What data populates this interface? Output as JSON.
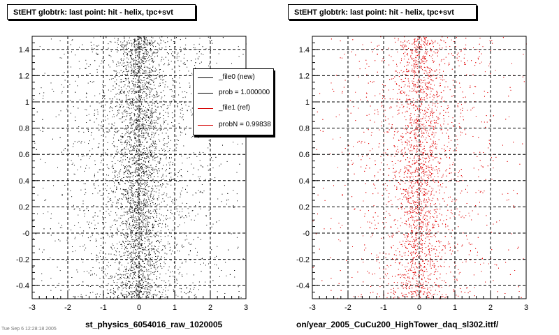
{
  "chart_data": [
    {
      "type": "scatter",
      "title": "StEHT globtrk: last point: hit - helix, tpc+svt",
      "xlabel": "st_physics_6054016_raw_1020005",
      "ylabel": "",
      "xlim": [
        -3,
        3
      ],
      "ylim": [
        -0.5,
        1.5
      ],
      "xticks": [
        -3,
        -2,
        -1,
        0,
        1,
        2,
        3
      ],
      "yticks": [
        -0.4,
        -0.2,
        0,
        0.2,
        0.4,
        0.6,
        0.8,
        1,
        1.2,
        1.4
      ],
      "ytick_labels": [
        "-0.4",
        "-0.2",
        "-0",
        "0.2",
        "0.4",
        "0.6",
        "0.8",
        "1",
        "1.2",
        "1.4"
      ],
      "grid": true,
      "marker_color": "#000000",
      "distribution": {
        "center_x": 0.0,
        "core_width": 0.3,
        "spread_width": 0.9,
        "density": "high near x=0, uniform in y"
      },
      "legend": {
        "placement": "top-right",
        "entries": [
          {
            "label": "_file0 (new)",
            "color": "#000000"
          },
          {
            "label": "prob = 1.000000",
            "color": "#000000"
          },
          {
            "label": "_file1 (ref)",
            "color": "#d40000"
          },
          {
            "label": "probN = 0.99838",
            "color": "#d40000"
          }
        ]
      }
    },
    {
      "type": "scatter",
      "title": "StEHT globtrk: last point: hit - helix, tpc+svt",
      "xlabel": "on/year_2005_CuCu200_HighTower_daq_sl302.ittf/",
      "ylabel": "",
      "xlim": [
        -3,
        3
      ],
      "ylim": [
        -0.5,
        1.5
      ],
      "xticks": [
        -3,
        -2,
        -1,
        0,
        1,
        2,
        3
      ],
      "yticks": [
        -0.4,
        -0.2,
        0,
        0.2,
        0.4,
        0.6,
        0.8,
        1,
        1.2,
        1.4
      ],
      "ytick_labels": [
        "-0.4",
        "-0.2",
        "-0",
        "0.2",
        "0.4",
        "0.6",
        "0.8",
        "1",
        "1.2",
        "1.4"
      ],
      "grid": true,
      "marker_color": "#e00000",
      "distribution": {
        "center_x": 0.0,
        "core_width": 0.3,
        "spread_width": 0.9,
        "density": "high near x=0, uniform in y"
      }
    }
  ],
  "footer": {
    "stamp": "Tue Sep 6 12:28:18 2005"
  }
}
